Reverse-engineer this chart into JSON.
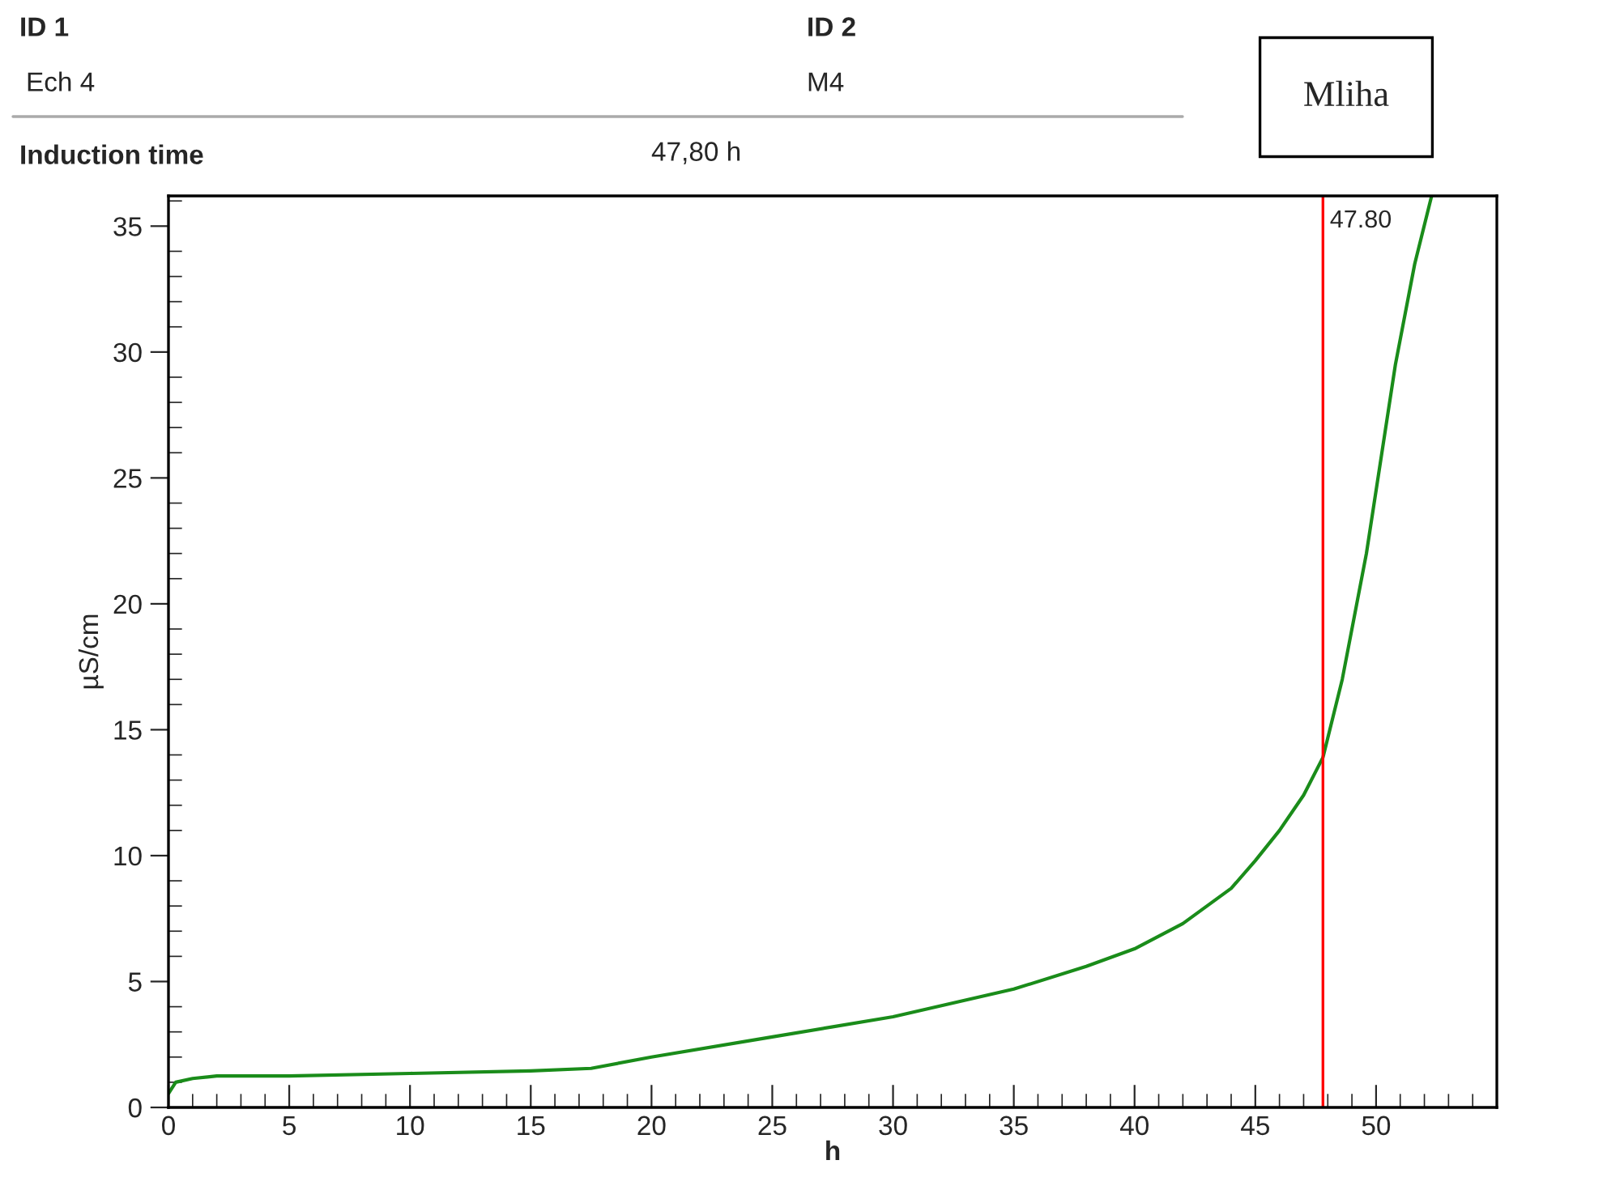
{
  "chart_data": {
    "type": "line",
    "xlabel": "h",
    "ylabel": "µS/cm",
    "annotations": [
      "ID 1",
      "Ech 4",
      "ID 2",
      "M4",
      "Induction time",
      "47,80 h",
      "Mliha"
    ],
    "series": [
      {
        "color": "#1a8c1a",
        "x": [
          0,
          0.3,
          1,
          2,
          5,
          10,
          15,
          17.5,
          20,
          25,
          30,
          35,
          38,
          40,
          42,
          44,
          45,
          46,
          47,
          47.8,
          48.6,
          49.6,
          50.8,
          51.6,
          52.3
        ],
        "values": [
          0.55,
          1.0,
          1.15,
          1.25,
          1.25,
          1.35,
          1.45,
          1.55,
          2.0,
          2.8,
          3.6,
          4.7,
          5.6,
          6.3,
          7.3,
          8.7,
          9.8,
          11.0,
          12.4,
          13.9,
          17.0,
          22.0,
          29.5,
          33.5,
          36.2
        ]
      }
    ],
    "ref_lines": [
      {
        "axis": "x",
        "value": 47.8,
        "label": "47.80",
        "color": "#ff0000"
      }
    ],
    "xlim": [
      0,
      55
    ],
    "ylim": [
      0,
      36.2
    ],
    "xticks": [
      0,
      {
        "value": 1,
        "label": null
      },
      {
        "value": 2,
        "label": null
      },
      {
        "value": 3,
        "label": null
      },
      {
        "value": 4,
        "label": null
      },
      5,
      {
        "value": 6,
        "label": null
      },
      {
        "value": 7,
        "label": null
      },
      {
        "value": 8,
        "label": null
      },
      {
        "value": 9,
        "label": null
      },
      10,
      {
        "value": 11,
        "label": null
      },
      {
        "value": 12,
        "label": null
      },
      {
        "value": 13,
        "label": null
      },
      {
        "value": 14,
        "label": null
      },
      15,
      {
        "value": 16,
        "label": null
      },
      {
        "value": 17,
        "label": null
      },
      {
        "value": 18,
        "label": null
      },
      {
        "value": 19,
        "label": null
      },
      20,
      {
        "value": 21,
        "label": null
      },
      {
        "value": 22,
        "label": null
      },
      {
        "value": 23,
        "label": null
      },
      {
        "value": 24,
        "label": null
      },
      25,
      {
        "value": 26,
        "label": null
      },
      {
        "value": 27,
        "label": null
      },
      {
        "value": 28,
        "label": null
      },
      {
        "value": 29,
        "label": null
      },
      30,
      {
        "value": 31,
        "label": null
      },
      {
        "value": 32,
        "label": null
      },
      {
        "value": 33,
        "label": null
      },
      {
        "value": 34,
        "label": null
      },
      35,
      {
        "value": 36,
        "label": null
      },
      {
        "value": 37,
        "label": null
      },
      {
        "value": 38,
        "label": null
      },
      {
        "value": 39,
        "label": null
      },
      40,
      {
        "value": 41,
        "label": null
      },
      {
        "value": 42,
        "label": null
      },
      {
        "value": 43,
        "label": null
      },
      {
        "value": 44,
        "label": null
      },
      45,
      {
        "value": 46,
        "label": null
      },
      {
        "value": 47,
        "label": null
      },
      {
        "value": 48,
        "label": null
      },
      {
        "value": 49,
        "label": null
      },
      50,
      {
        "value": 51,
        "label": null
      },
      {
        "value": 52,
        "label": null
      },
      {
        "value": 53,
        "label": null
      },
      {
        "value": 54,
        "label": null
      }
    ],
    "yticks": [
      0,
      {
        "value": 1,
        "label": null
      },
      {
        "value": 2,
        "label": null
      },
      {
        "value": 3,
        "label": null
      },
      {
        "value": 4,
        "label": null
      },
      5,
      {
        "value": 6,
        "label": null
      },
      {
        "value": 7,
        "label": null
      },
      {
        "value": 8,
        "label": null
      },
      {
        "value": 9,
        "label": null
      },
      10,
      {
        "value": 11,
        "label": null
      },
      {
        "value": 12,
        "label": null
      },
      {
        "value": 13,
        "label": null
      },
      {
        "value": 14,
        "label": null
      },
      15,
      {
        "value": 16,
        "label": null
      },
      {
        "value": 17,
        "label": null
      },
      {
        "value": 18,
        "label": null
      },
      {
        "value": 19,
        "label": null
      },
      20,
      {
        "value": 21,
        "label": null
      },
      {
        "value": 22,
        "label": null
      },
      {
        "value": 23,
        "label": null
      },
      {
        "value": 24,
        "label": null
      },
      25,
      {
        "value": 26,
        "label": null
      },
      {
        "value": 27,
        "label": null
      },
      {
        "value": 28,
        "label": null
      },
      {
        "value": 29,
        "label": null
      },
      30,
      {
        "value": 31,
        "label": null
      },
      {
        "value": 32,
        "label": null
      },
      {
        "value": 33,
        "label": null
      },
      {
        "value": 34,
        "label": null
      },
      35,
      {
        "value": 36,
        "label": null
      }
    ],
    "grid": false,
    "legend": false,
    "marker": "none",
    "line_style": "solid"
  }
}
